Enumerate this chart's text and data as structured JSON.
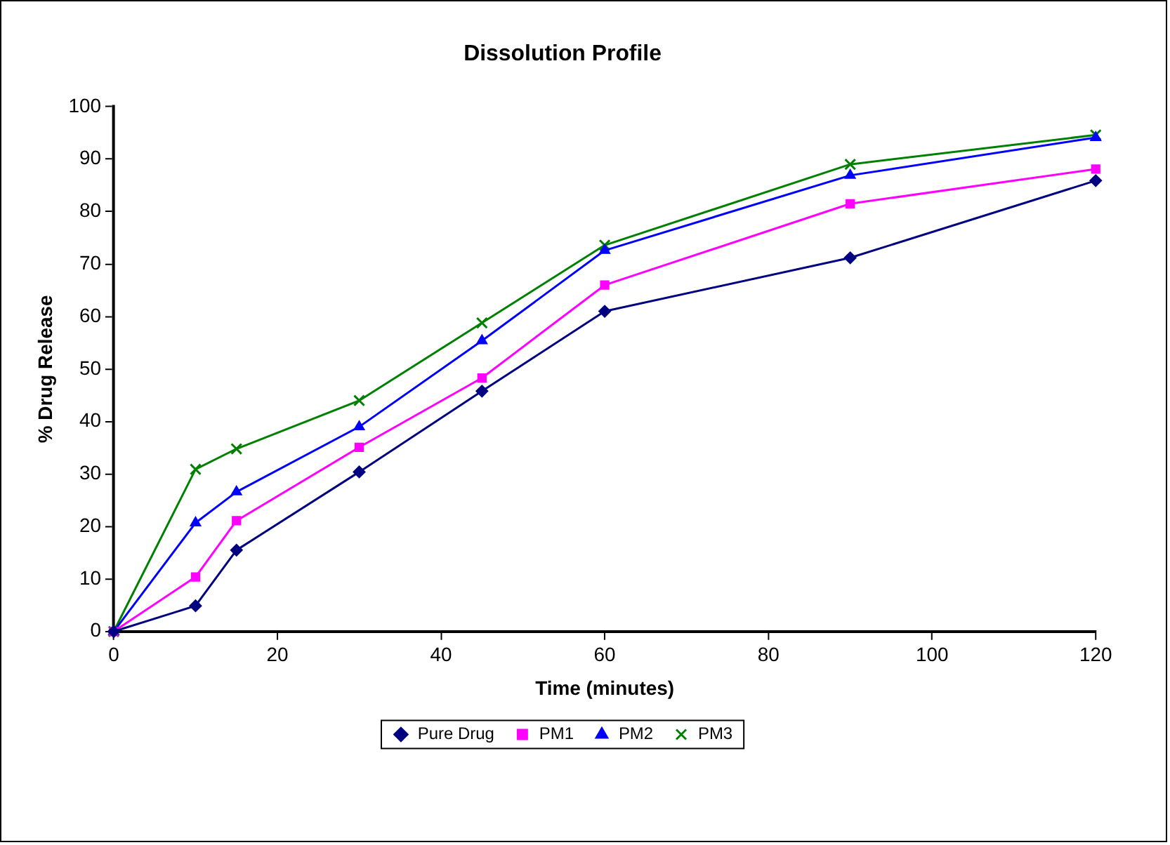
{
  "chart_data": {
    "type": "line",
    "title": "Dissolution Profile",
    "xlabel": "Time (minutes)",
    "ylabel": "% Drug Release",
    "x": [
      0,
      10,
      15,
      30,
      45,
      60,
      90,
      120
    ],
    "series": [
      {
        "name": "Pure Drug",
        "color": "#000080",
        "marker": "diamond",
        "values": [
          0,
          4.9,
          15.5,
          30.4,
          45.8,
          61.0,
          71.2,
          85.9
        ]
      },
      {
        "name": "PM1",
        "color": "#ff00ff",
        "marker": "square",
        "values": [
          0,
          10.4,
          21.1,
          35.1,
          48.3,
          66.0,
          81.5,
          88.1
        ]
      },
      {
        "name": "PM2",
        "color": "#0000ff",
        "marker": "triangle",
        "values": [
          0,
          20.7,
          26.6,
          39.0,
          55.4,
          72.6,
          86.9,
          94.1
        ]
      },
      {
        "name": "PM3",
        "color": "#008000",
        "marker": "cross",
        "values": [
          0,
          30.9,
          34.8,
          44.0,
          58.8,
          73.6,
          89.0,
          94.6
        ]
      }
    ],
    "xlim": [
      0,
      120
    ],
    "xticks": [
      0,
      20,
      40,
      60,
      80,
      100,
      120
    ],
    "ylim": [
      0,
      100
    ],
    "yticks": [
      0,
      10,
      20,
      30,
      40,
      50,
      60,
      70,
      80,
      90,
      100
    ],
    "grid": false,
    "legend": "bottom",
    "line_style": "solid"
  }
}
